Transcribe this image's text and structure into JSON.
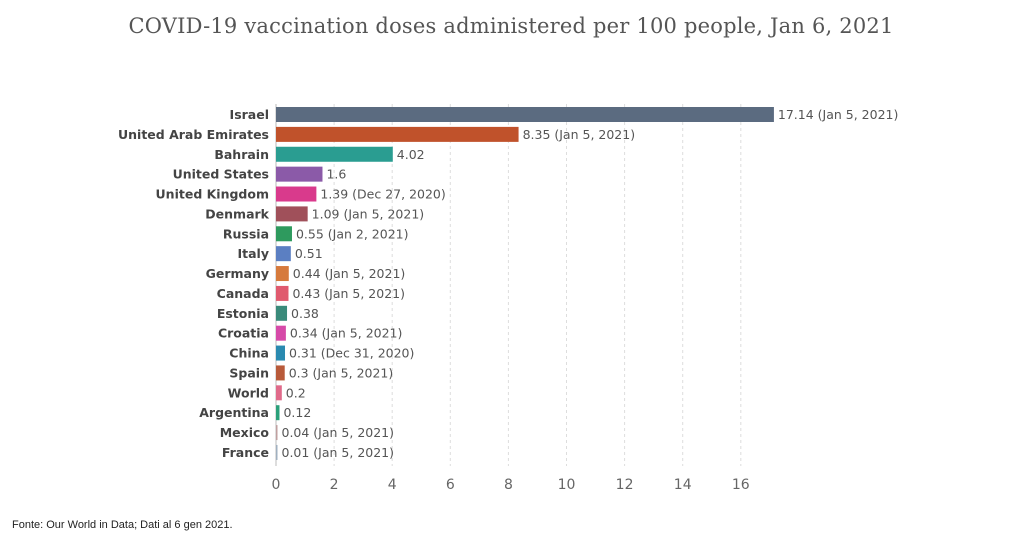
{
  "chart_data": {
    "type": "bar",
    "orientation": "horizontal",
    "title": "COVID-19 vaccination doses administered per 100 people, Jan 6, 2021",
    "xlabel": "",
    "ylabel": "",
    "xlim": [
      0,
      17.5
    ],
    "xticks": [
      0,
      2,
      4,
      6,
      8,
      10,
      12,
      14,
      16
    ],
    "grid": "vertical-dashed",
    "categories": [
      "Israel",
      "United Arab Emirates",
      "Bahrain",
      "United States",
      "United Kingdom",
      "Denmark",
      "Russia",
      "Italy",
      "Germany",
      "Canada",
      "Estonia",
      "Croatia",
      "China",
      "Spain",
      "World",
      "Argentina",
      "Mexico",
      "France"
    ],
    "values": [
      17.14,
      8.35,
      4.02,
      1.6,
      1.39,
      1.09,
      0.55,
      0.51,
      0.44,
      0.43,
      0.38,
      0.34,
      0.31,
      0.3,
      0.2,
      0.12,
      0.04,
      0.01
    ],
    "value_labels": [
      "17.14 (Jan 5, 2021)",
      "8.35 (Jan 5, 2021)",
      "4.02",
      "1.6",
      "1.39 (Dec 27, 2020)",
      "1.09 (Jan 5, 2021)",
      "0.55 (Jan 2, 2021)",
      "0.51",
      "0.44 (Jan 5, 2021)",
      "0.43 (Jan 5, 2021)",
      "0.38",
      "0.34 (Jan 5, 2021)",
      "0.31 (Dec 31, 2020)",
      "0.3 (Jan 5, 2021)",
      "0.2",
      "0.12",
      "0.04 (Jan 5, 2021)",
      "0.01 (Jan 5, 2021)"
    ],
    "colors": [
      "#5b6b80",
      "#c0522b",
      "#2a9d91",
      "#8b5aa8",
      "#d93a8c",
      "#a0505a",
      "#2e9a5e",
      "#5b7fc2",
      "#d67a3c",
      "#e05a6e",
      "#3a8a7a",
      "#d64aa8",
      "#2a8ab0",
      "#b85a3a",
      "#e06a8a",
      "#2aa07a",
      "#c0a0a0",
      "#a0b0c0"
    ]
  },
  "source": "Fonte: Our World in Data; Dati al 6 gen 2021."
}
